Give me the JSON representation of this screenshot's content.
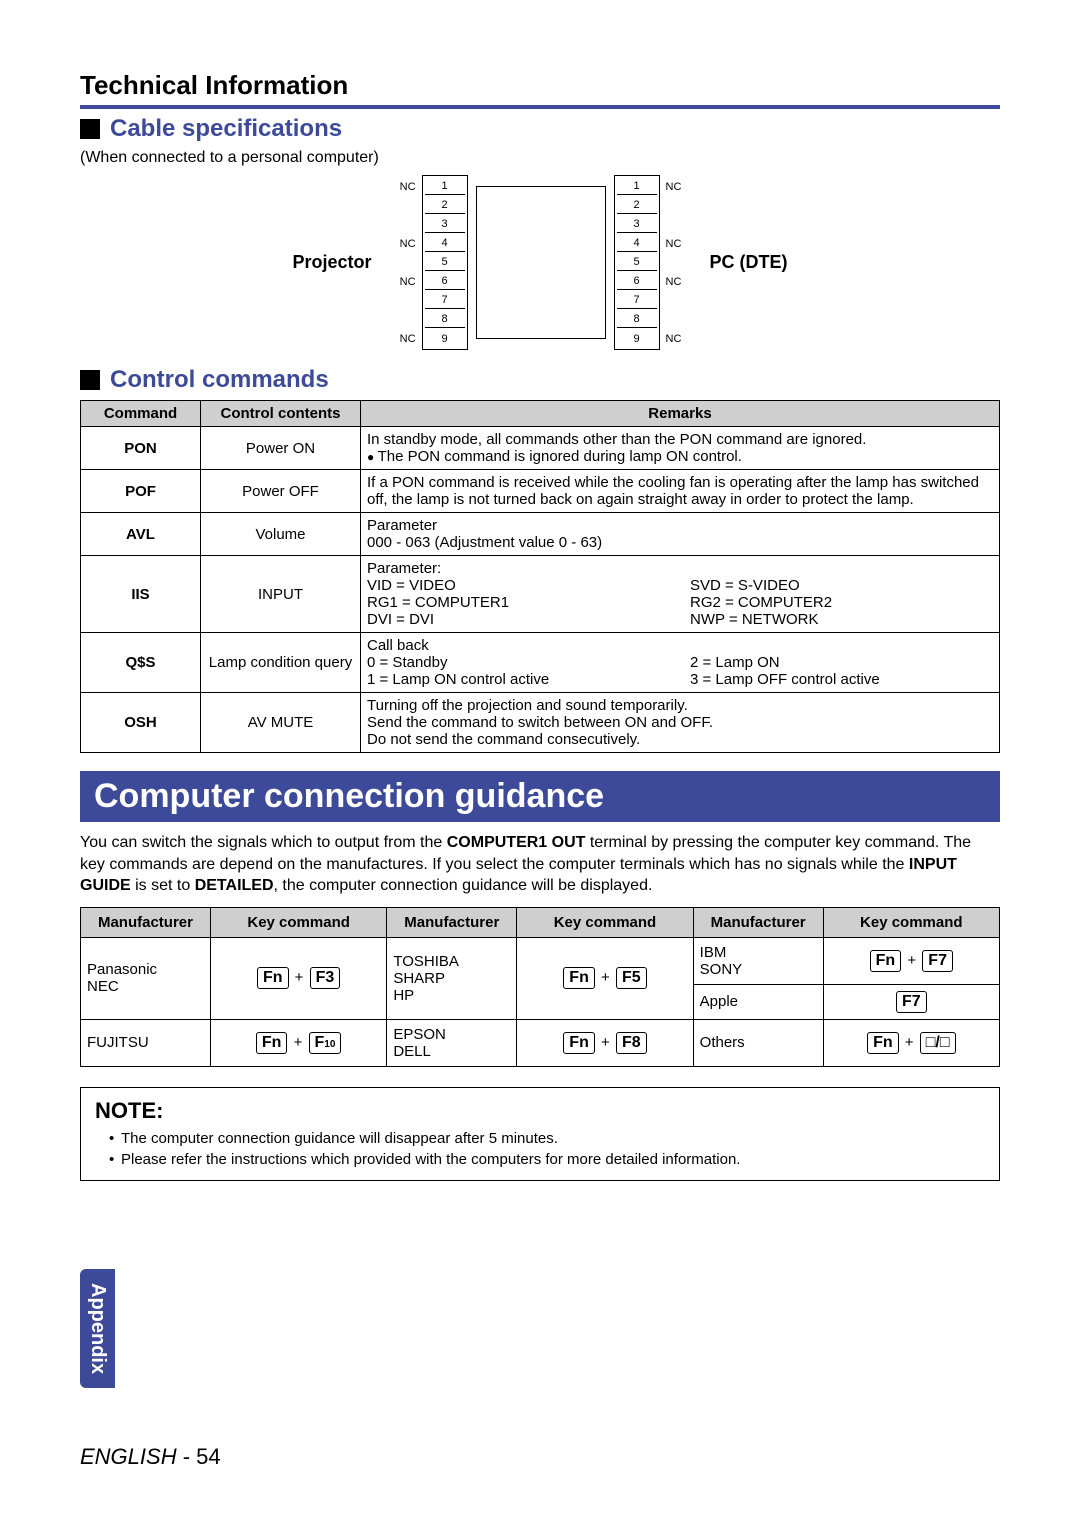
{
  "page": {
    "title": "Technical Information",
    "section1": "Cable specifications",
    "section1_note": "(When connected to a personal computer)",
    "diagram_left_label": "Projector",
    "diagram_right_label": "PC (DTE)",
    "section2": "Control commands",
    "banner": "Computer connection guidance",
    "body_pre": "You can switch the signals which to output from the ",
    "body_b1": "COMPUTER1 OUT",
    "body_mid1": " terminal by pressing the computer key command. The key commands are depend on the manufactures. If you select the computer terminals which has no signals while the ",
    "body_b2": "INPUT GUIDE",
    "body_mid2": " is set to ",
    "body_b3": "DETAILED",
    "body_post": ", the computer connection guidance will be displayed.",
    "note_label": "NOTE:",
    "note1": "The computer connection guidance will disappear after 5 minutes.",
    "note2": "Please refer the instructions which provided with the computers for more detailed information.",
    "appendix": "Appendix",
    "footer_lang": "ENGLISH",
    "footer_page": " - 54"
  },
  "pins": {
    "left_nc": [
      "NC",
      "",
      "",
      "NC",
      "",
      "NC",
      "",
      "",
      "NC"
    ],
    "left_nums": [
      "1",
      "2",
      "3",
      "4",
      "5",
      "6",
      "7",
      "8",
      "9"
    ],
    "right_nums": [
      "1",
      "2",
      "3",
      "4",
      "5",
      "6",
      "7",
      "8",
      "9"
    ],
    "right_nc": [
      "NC",
      "",
      "",
      "NC",
      "",
      "NC",
      "",
      "",
      "NC"
    ]
  },
  "control": {
    "headers": [
      "Command",
      "Control contents",
      "Remarks"
    ],
    "rows": [
      {
        "cmd": "PON",
        "cc": "Power ON",
        "r": "In standby mode, all commands other than the PON command are ignored.",
        "rbullet": "The PON command is ignored during lamp ON control."
      },
      {
        "cmd": "POF",
        "cc": "Power OFF",
        "r": "If a PON command is received while the cooling fan is operating after the lamp has switched off, the lamp is not turned back on again straight away in order to protect the lamp."
      },
      {
        "cmd": "AVL",
        "cc": "Volume",
        "r": "Parameter",
        "r2": "000 - 063 (Adjustment value 0 - 63)"
      },
      {
        "cmd": "IIS",
        "cc": "INPUT",
        "r": "Parameter:",
        "grid": [
          "VID = VIDEO",
          "SVD = S-VIDEO",
          "RG1 = COMPUTER1",
          "RG2 = COMPUTER2",
          "DVI = DVI",
          "NWP = NETWORK"
        ]
      },
      {
        "cmd": "Q$S",
        "cc": "Lamp condition query",
        "r": "Call back",
        "grid": [
          "0 = Standby",
          "2 = Lamp ON",
          "1 = Lamp ON control active",
          "3 = Lamp OFF control active"
        ]
      },
      {
        "cmd": "OSH",
        "cc": "AV MUTE",
        "lines": [
          "Turning off the projection and sound temporarily.",
          "Send the command to switch between ON and OFF.",
          "Do not send the command consecutively."
        ]
      }
    ]
  },
  "keys": {
    "headers": [
      "Manufacturer",
      "Key command",
      "Manufacturer",
      "Key command",
      "Manufacturer",
      "Key command"
    ],
    "row1": {
      "m1": "Panasonic\nNEC",
      "k1_a": "Fn",
      "k1_b": "F3",
      "m2": "TOSHIBA\nSHARP\nHP",
      "k2_a": "Fn",
      "k2_b": "F5",
      "m3a": "IBM\nSONY",
      "k3a_a": "Fn",
      "k3a_b": "F7",
      "m3b": "Apple",
      "k3b": "F7"
    },
    "row2": {
      "m1": "FUJITSU",
      "k1_a": "Fn",
      "k1_b": "F10",
      "m2": "EPSON\nDELL",
      "k2_a": "Fn",
      "k2_b": "F8",
      "m3": "Others",
      "k3_a": "Fn",
      "k3_b": "□/□"
    }
  },
  "colors": {
    "accent": "#3d4a9a",
    "header_bg": "#cfcfcf"
  }
}
